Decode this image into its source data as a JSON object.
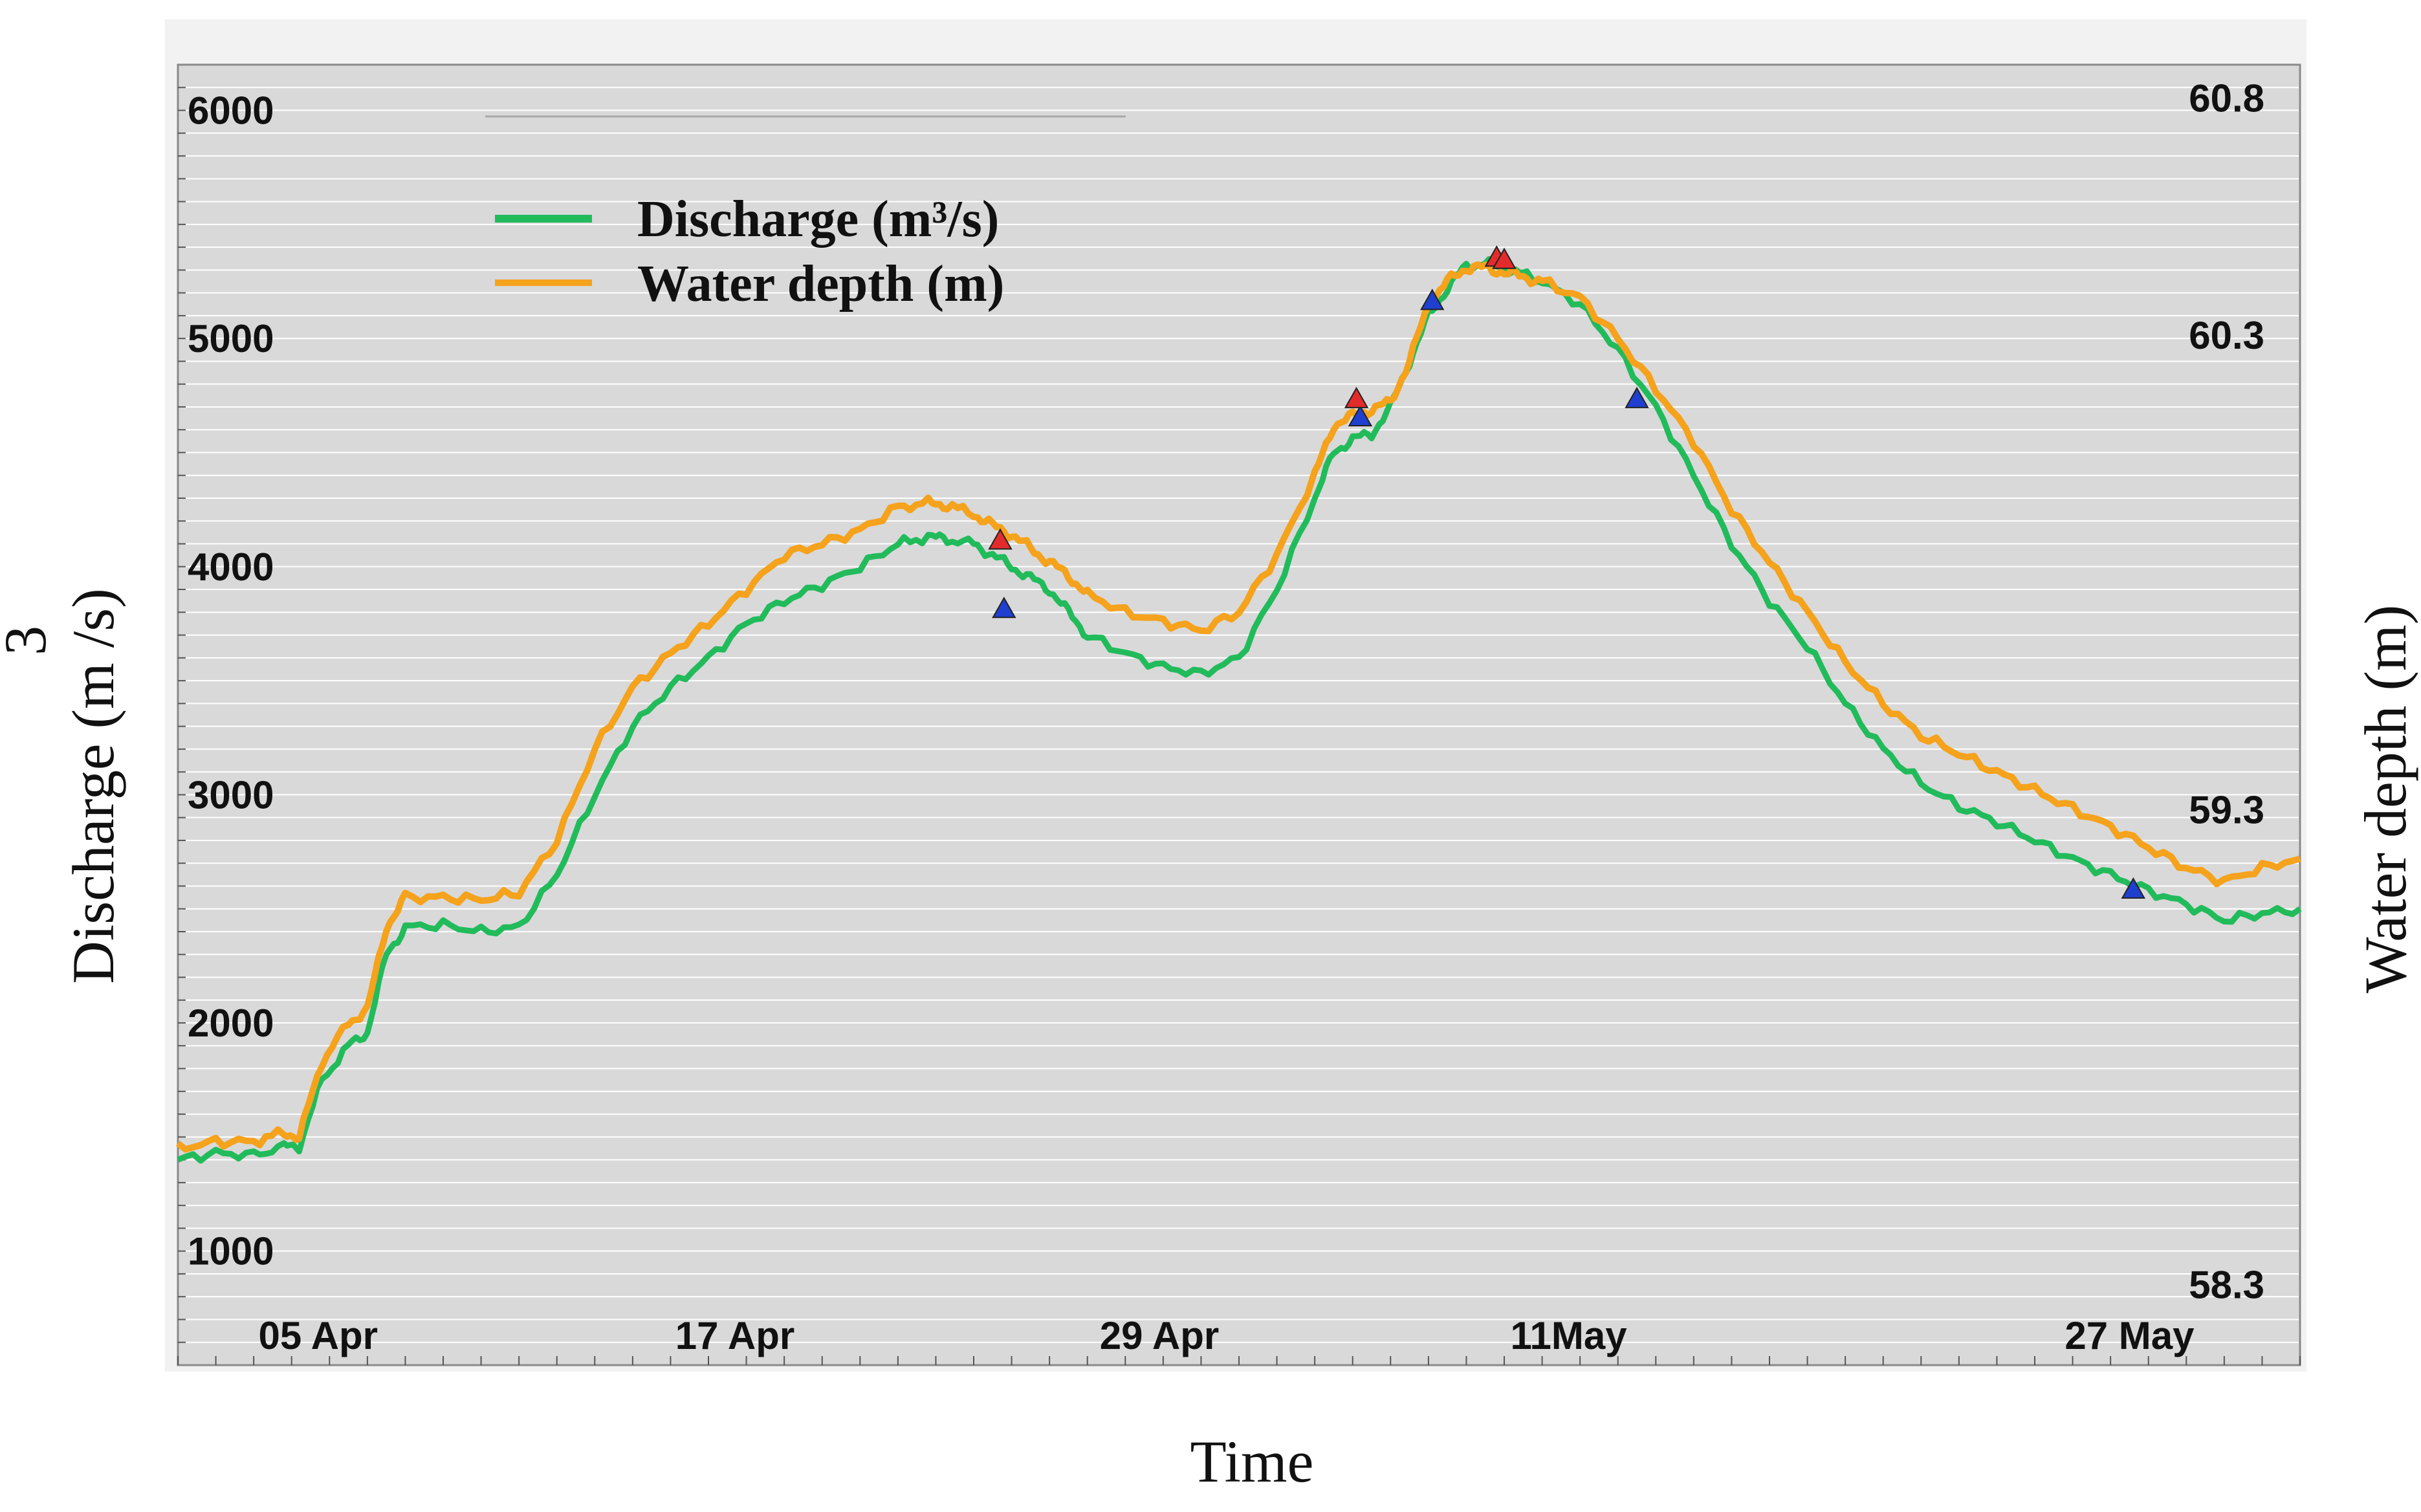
{
  "chart_data": {
    "type": "line",
    "xlabel": "Time",
    "ylabel_left": "Discharge (m /s)",
    "ylabel_left_superscript": "3",
    "ylabel_right": "Water depth (m)",
    "x_range_days": [
      0,
      56
    ],
    "left_ylim": [
      500,
      6200
    ],
    "right_ylim": [
      58.13,
      60.87
    ],
    "left_ticks": [
      {
        "v": 1000,
        "label": "1000"
      },
      {
        "v": 2000,
        "label": "2000"
      },
      {
        "v": 3000,
        "label": "3000"
      },
      {
        "v": 4000,
        "label": "4000"
      },
      {
        "v": 5000,
        "label": "5000"
      },
      {
        "v": 6000,
        "label": "6000"
      }
    ],
    "right_ticks": [
      {
        "v": 58.3,
        "label": "58.3"
      },
      {
        "v": 59.3,
        "label": "59.3"
      },
      {
        "v": 60.3,
        "label": "60.3"
      },
      {
        "v": 60.8,
        "label": "60.8"
      }
    ],
    "x_ticks": [
      {
        "day": 3.7,
        "label": "05 Apr"
      },
      {
        "day": 14.7,
        "label": "17 Apr"
      },
      {
        "day": 25.9,
        "label": "29 Apr"
      },
      {
        "day": 36.7,
        "label": "11May"
      },
      {
        "day": 51.5,
        "label": "27 May"
      }
    ],
    "legend": [
      {
        "name": "Discharge (m³/s)",
        "color": "#22bb5b"
      },
      {
        "name": "Water depth (m)",
        "color": "#f5a21c"
      }
    ],
    "series": [
      {
        "name": "Discharge (m³/s)",
        "color": "#22bb5b",
        "points": [
          [
            0,
            1400
          ],
          [
            1,
            1430
          ],
          [
            2,
            1420
          ],
          [
            2.8,
            1460
          ],
          [
            3.2,
            1460
          ],
          [
            3.8,
            1750
          ],
          [
            4.5,
            1900
          ],
          [
            5,
            1960
          ],
          [
            5.5,
            2300
          ],
          [
            6,
            2420
          ],
          [
            7,
            2430
          ],
          [
            8,
            2400
          ],
          [
            9,
            2420
          ],
          [
            10,
            2650
          ],
          [
            11,
            3000
          ],
          [
            12,
            3300
          ],
          [
            13,
            3470
          ],
          [
            14,
            3600
          ],
          [
            15,
            3750
          ],
          [
            16,
            3850
          ],
          [
            17,
            3920
          ],
          [
            18,
            4000
          ],
          [
            19,
            4100
          ],
          [
            19.8,
            4130
          ],
          [
            20.3,
            4120
          ],
          [
            21,
            4100
          ],
          [
            21.5,
            4050
          ],
          [
            22,
            4000
          ],
          [
            22.5,
            3950
          ],
          [
            23,
            3900
          ],
          [
            23.5,
            3800
          ],
          [
            24,
            3700
          ],
          [
            25,
            3620
          ],
          [
            26,
            3560
          ],
          [
            27,
            3530
          ],
          [
            28,
            3600
          ],
          [
            29,
            3900
          ],
          [
            30,
            4300
          ],
          [
            30.5,
            4500
          ],
          [
            31,
            4560
          ],
          [
            31.5,
            4580
          ],
          [
            32,
            4700
          ],
          [
            32.5,
            4900
          ],
          [
            33,
            5100
          ],
          [
            33.5,
            5220
          ],
          [
            34,
            5320
          ],
          [
            34.5,
            5330
          ],
          [
            35,
            5310
          ],
          [
            35.5,
            5280
          ],
          [
            36,
            5250
          ],
          [
            37,
            5150
          ],
          [
            38,
            4950
          ],
          [
            39,
            4700
          ],
          [
            40,
            4400
          ],
          [
            41,
            4100
          ],
          [
            42,
            3850
          ],
          [
            43,
            3650
          ],
          [
            44,
            3400
          ],
          [
            45,
            3200
          ],
          [
            46,
            3050
          ],
          [
            47,
            2950
          ],
          [
            48,
            2880
          ],
          [
            49,
            2800
          ],
          [
            50,
            2720
          ],
          [
            51,
            2650
          ],
          [
            52,
            2580
          ],
          [
            53,
            2520
          ],
          [
            54,
            2450
          ],
          [
            55,
            2480
          ],
          [
            56,
            2500
          ]
        ]
      },
      {
        "name": "Water depth (m)",
        "color": "#f5a21c",
        "points": [
          [
            0,
            1450
          ],
          [
            1,
            1480
          ],
          [
            2,
            1480
          ],
          [
            2.8,
            1520
          ],
          [
            3.2,
            1500
          ],
          [
            3.8,
            1830
          ],
          [
            4.5,
            2000
          ],
          [
            5,
            2060
          ],
          [
            5.5,
            2420
          ],
          [
            6,
            2550
          ],
          [
            7,
            2550
          ],
          [
            8,
            2540
          ],
          [
            9,
            2570
          ],
          [
            10,
            2800
          ],
          [
            11,
            3200
          ],
          [
            12,
            3470
          ],
          [
            13,
            3620
          ],
          [
            14,
            3750
          ],
          [
            15,
            3900
          ],
          [
            16,
            4050
          ],
          [
            17,
            4100
          ],
          [
            18,
            4160
          ],
          [
            19,
            4260
          ],
          [
            19.8,
            4280
          ],
          [
            20.3,
            4270
          ],
          [
            21,
            4230
          ],
          [
            21.5,
            4180
          ],
          [
            22,
            4140
          ],
          [
            22.5,
            4080
          ],
          [
            23,
            4020
          ],
          [
            23.5,
            3960
          ],
          [
            24,
            3880
          ],
          [
            25,
            3800
          ],
          [
            26,
            3760
          ],
          [
            27,
            3720
          ],
          [
            28,
            3800
          ],
          [
            29,
            4050
          ],
          [
            30,
            4400
          ],
          [
            30.5,
            4620
          ],
          [
            31,
            4660
          ],
          [
            31.5,
            4690
          ],
          [
            32,
            4720
          ],
          [
            32.5,
            4900
          ],
          [
            33,
            5150
          ],
          [
            33.5,
            5250
          ],
          [
            34,
            5310
          ],
          [
            34.5,
            5310
          ],
          [
            35,
            5290
          ],
          [
            35.5,
            5270
          ],
          [
            36,
            5250
          ],
          [
            37,
            5180
          ],
          [
            38,
            5000
          ],
          [
            39,
            4780
          ],
          [
            40,
            4550
          ],
          [
            41,
            4250
          ],
          [
            42,
            4020
          ],
          [
            43,
            3800
          ],
          [
            44,
            3580
          ],
          [
            45,
            3400
          ],
          [
            46,
            3260
          ],
          [
            47,
            3180
          ],
          [
            48,
            3100
          ],
          [
            49,
            3020
          ],
          [
            50,
            2940
          ],
          [
            51,
            2860
          ],
          [
            52,
            2770
          ],
          [
            53,
            2680
          ],
          [
            54,
            2620
          ],
          [
            55,
            2680
          ],
          [
            56,
            2720
          ]
        ]
      }
    ],
    "markers": [
      {
        "day": 21.8,
        "value": 3820,
        "color": "#1f3fcf"
      },
      {
        "day": 31.2,
        "value": 4660,
        "color": "#1f3fcf"
      },
      {
        "day": 33.1,
        "value": 5170,
        "color": "#1f3fcf"
      },
      {
        "day": 38.5,
        "value": 4740,
        "color": "#1f3fcf"
      },
      {
        "day": 51.6,
        "value": 2590,
        "color": "#1f3fcf"
      },
      {
        "day": 21.7,
        "value": 4120,
        "color": "#e42b2b"
      },
      {
        "day": 31.1,
        "value": 4740,
        "color": "#e42b2b"
      },
      {
        "day": 34.8,
        "value": 5360,
        "color": "#e42b2b"
      },
      {
        "day": 35.0,
        "value": 5350,
        "color": "#e42b2b"
      }
    ]
  }
}
